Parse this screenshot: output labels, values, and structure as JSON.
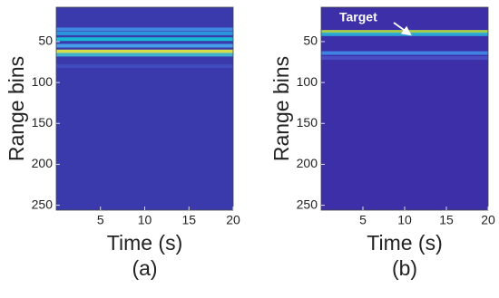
{
  "chart_data": [
    {
      "type": "heatmap",
      "xlabel": "Time (s)",
      "ylabel": "Range bins",
      "caption": "(a)",
      "xlim": [
        0,
        20
      ],
      "ylim": [
        8,
        256
      ],
      "xticks": [
        5,
        10,
        15,
        20
      ],
      "yticks": [
        50,
        100,
        150,
        200,
        250
      ],
      "background": "#3b3aac",
      "bands": [
        {
          "bin": 35,
          "color": "#3f8fe8"
        },
        {
          "bin": 40,
          "color": "#2a9fe0"
        },
        {
          "bin": 47,
          "color": "#14c8d8"
        },
        {
          "bin": 55,
          "color": "#48a8f0"
        },
        {
          "bin": 62,
          "color": "#e8f040"
        },
        {
          "bin": 66,
          "color": "#40c0d0"
        },
        {
          "bin": 80,
          "color": "#4050c0"
        }
      ]
    },
    {
      "type": "heatmap",
      "xlabel": "Time (s)",
      "ylabel": "Range bins",
      "caption": "(b)",
      "xlim": [
        0,
        20
      ],
      "ylim": [
        8,
        256
      ],
      "xticks": [
        5,
        10,
        15,
        20
      ],
      "yticks": [
        50,
        100,
        150,
        200,
        250
      ],
      "background": "#3d2fa8",
      "annotation": "Target",
      "bands": [
        {
          "bin": 38,
          "color": "#b8e040"
        },
        {
          "bin": 41,
          "color": "#2ab0d8"
        },
        {
          "bin": 64,
          "color": "#3f8ce8"
        },
        {
          "bin": 70,
          "color": "#4a50c8"
        }
      ]
    }
  ]
}
